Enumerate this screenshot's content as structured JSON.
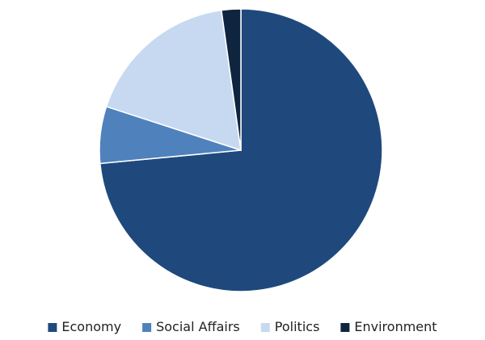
{
  "chart_data": {
    "type": "pie",
    "categories": [
      "Economy",
      "Social Affairs",
      "Politics",
      "Environment"
    ],
    "values": [
      73.5,
      6.5,
      17.8,
      2.2
    ],
    "colors": [
      "#1f497d",
      "#4f81bd",
      "#c6d9f1",
      "#0f243e"
    ],
    "start": "12 o'clock",
    "direction": "clockwise",
    "legend_position": "bottom",
    "data_labels": false
  }
}
